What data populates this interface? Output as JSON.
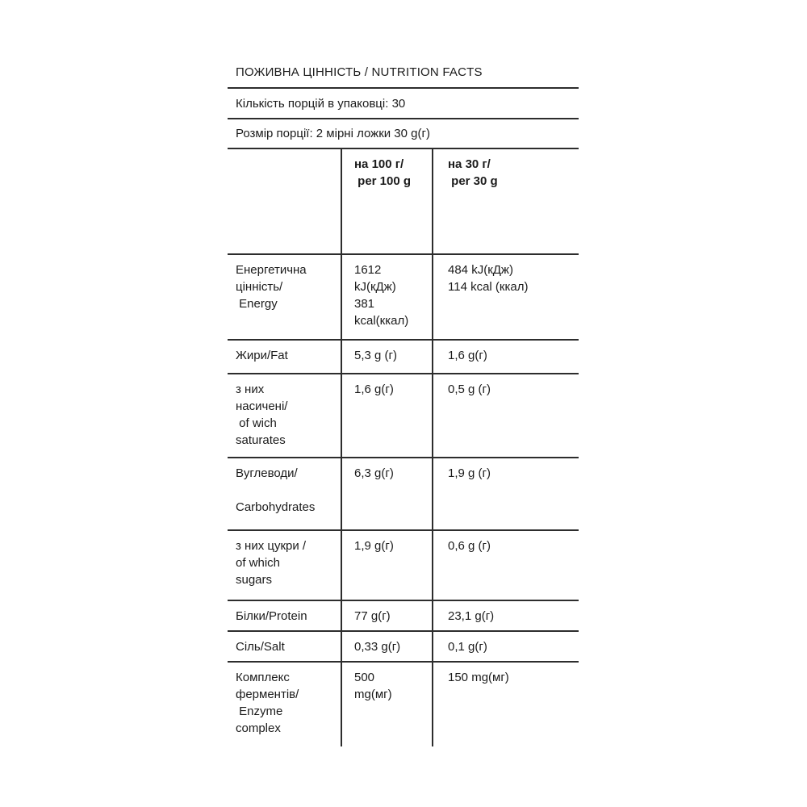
{
  "label": {
    "title": "ПОЖИВНА ЦІННІСТЬ / NUTRITION FACTS",
    "servings_per_pack": "Кількість порцій в упаковці: 30",
    "serving_size": "Розмір порції: 2 мірні ложки 30 g(г)"
  },
  "table": {
    "columns": {
      "nutrient": "",
      "per100": "на 100 г/\n per 100 g",
      "per30": "на 30 г/\n per 30 g"
    },
    "rows": [
      {
        "label": "Енергетична\nцінність/\n Energy",
        "per100": "1612\nkJ(кДж)\n381\nkcal(ккал)",
        "per30": "484 kJ(кДж)\n114 kcal (ккал)"
      },
      {
        "label": "Жири/Fat",
        "per100": "5,3 g (г)",
        "per30": "1,6 g(г)"
      },
      {
        "label": "з них\nнасичені/\n of wich\nsaturates",
        "per100": "1,6 g(г)",
        "per30": "0,5 g (г)"
      },
      {
        "label": "Вуглеводи/\n\nCarbohydrates",
        "per100": "6,3 g(г)",
        "per30": "1,9 g (г)"
      },
      {
        "label": "з них цукри /\nof which\nsugars",
        "per100": "1,9 g(г)",
        "per30": "0,6 g (г)"
      },
      {
        "label": "Білки/Protein",
        "per100": "77 g(г)",
        "per30": "23,1 g(г)"
      },
      {
        "label": "Сіль/Salt",
        "per100": "0,33 g(г)",
        "per30": "0,1 g(г)"
      },
      {
        "label": "Комплекс\nферментів/\n Enzyme\ncomplex",
        "per100": "500\nmg(мг)",
        "per30": "150 mg(мг)"
      }
    ]
  },
  "colors": {
    "text": "#1b1b1b",
    "rule": "#2d2d2d",
    "background": "#ffffff"
  }
}
